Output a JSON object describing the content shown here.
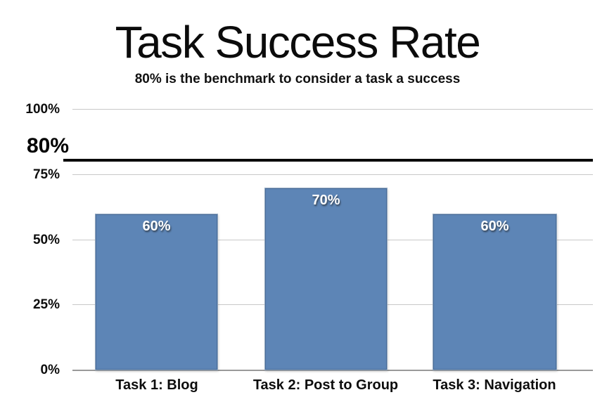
{
  "title": "Task Success Rate",
  "subtitle": "80% is the benchmark to consider a task a success",
  "chart_data": {
    "type": "bar",
    "title": "Task Success Rate",
    "subtitle": "80% is the benchmark to consider a task a success",
    "categories": [
      "Task 1: Blog",
      "Task 2: Post to Group",
      "Task 3: Navigation"
    ],
    "values": [
      60,
      70,
      60
    ],
    "value_labels": [
      "60%",
      "70%",
      "60%"
    ],
    "ylim": [
      0,
      100
    ],
    "yticks": [
      0,
      25,
      50,
      75,
      100
    ],
    "ytick_labels": [
      "0%",
      "25%",
      "50%",
      "75%",
      "100%"
    ],
    "benchmark": {
      "value": 80,
      "label": "80%"
    },
    "grid": true,
    "legend": "none",
    "xlabel": "",
    "ylabel": "",
    "colors": {
      "bar_fill": "#5d85b6",
      "bar_border": "#93a9c2",
      "benchmark_line": "#0a0a0a",
      "gridline": "#c8c8c8",
      "baseline": "#9a9a9a",
      "text": "#0d0d0d",
      "bar_label_text": "#ffffff",
      "background": "#ffffff"
    }
  }
}
